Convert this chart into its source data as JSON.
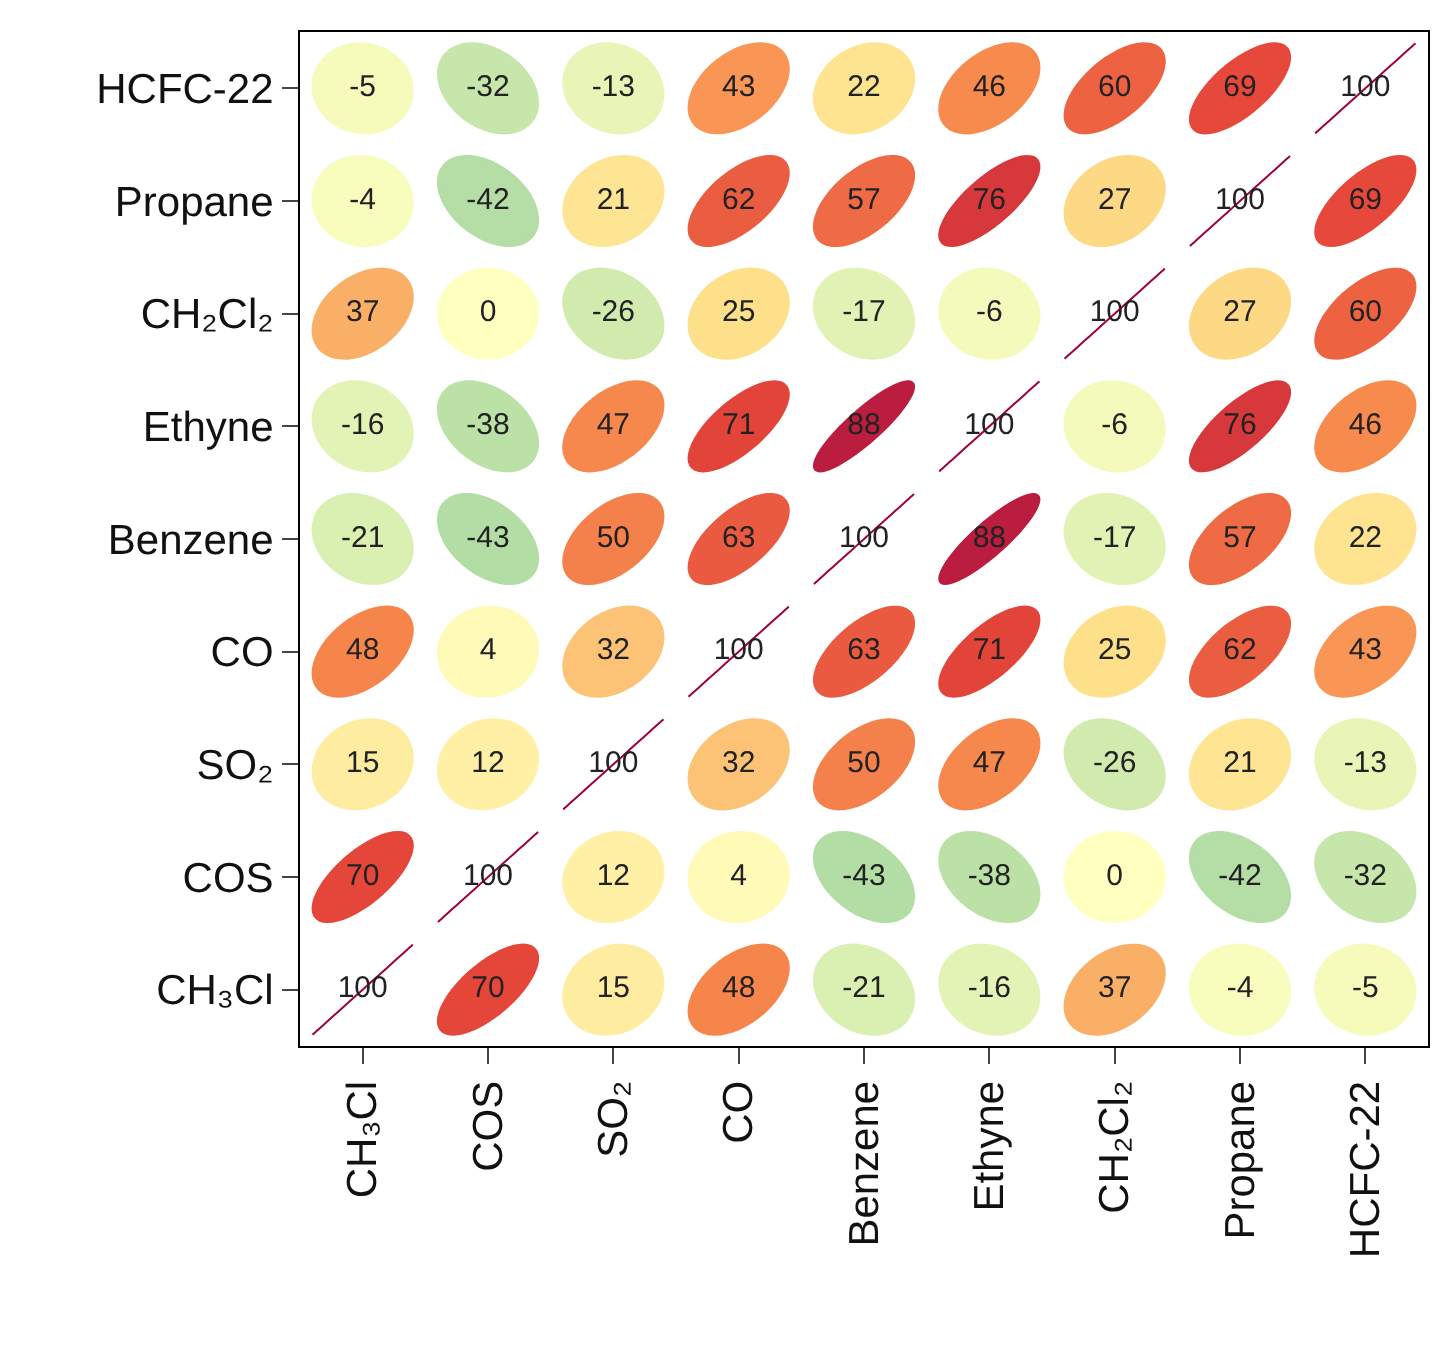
{
  "chart_data": {
    "type": "heatmap",
    "categories": [
      "CH₃Cl",
      "COS",
      "SO₂",
      "CO",
      "Benzene",
      "Ethyne",
      "CH₂Cl₂",
      "Propane",
      "HCFC-22"
    ],
    "y_categories": [
      "HCFC-22",
      "Propane",
      "CH₂Cl₂",
      "Ethyne",
      "Benzene",
      "CO",
      "SO₂",
      "COS",
      "CH₃Cl"
    ],
    "cells": [
      [
        -5,
        -32,
        -13,
        43,
        22,
        46,
        60,
        69,
        100
      ],
      [
        -4,
        -42,
        21,
        62,
        57,
        76,
        27,
        100,
        69
      ],
      [
        37,
        0,
        -26,
        25,
        -17,
        -6,
        100,
        27,
        60
      ],
      [
        -16,
        -38,
        47,
        71,
        88,
        100,
        -6,
        76,
        46
      ],
      [
        -21,
        -43,
        50,
        63,
        100,
        88,
        -17,
        57,
        22
      ],
      [
        48,
        4,
        32,
        100,
        63,
        71,
        25,
        62,
        43
      ],
      [
        15,
        12,
        100,
        32,
        50,
        47,
        -26,
        21,
        -13
      ],
      [
        70,
        100,
        12,
        4,
        -43,
        -38,
        0,
        -42,
        -32
      ],
      [
        100,
        70,
        15,
        48,
        -21,
        -16,
        37,
        -4,
        -5
      ]
    ],
    "data_labels": true
  }
}
